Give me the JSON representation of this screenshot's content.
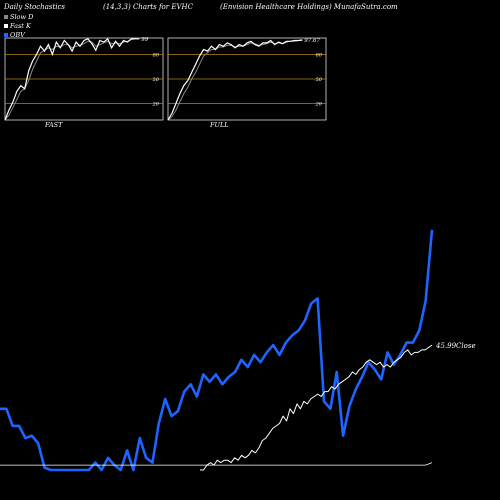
{
  "header": {
    "left": "Daily Stochastics",
    "center": "(14,3,3) Charts for EVHC",
    "right": "(Envision  Healthcare  Holdings) MunafaSutra.com"
  },
  "legend": [
    {
      "label": "Slow  D",
      "color": "#888888"
    },
    {
      "label": "Fast K",
      "color": "#ffffff"
    },
    {
      "label": "OBV",
      "color": "#1e64ff"
    }
  ],
  "colors": {
    "background": "#000000",
    "obv": "#1e64ff",
    "close": "#ffffff",
    "levels": "#b8860b"
  },
  "chart_data": [
    {
      "type": "line",
      "label": "FAST",
      "ylim": [
        0,
        100
      ],
      "levels": [
        20,
        50,
        80
      ],
      "last_value_label": "99",
      "series": [
        {
          "name": "Fast K",
          "values": [
            0,
            12,
            22,
            35,
            42,
            38,
            60,
            72,
            80,
            90,
            84,
            92,
            80,
            95,
            88,
            97,
            92,
            84,
            95,
            90,
            97,
            99,
            93,
            85,
            97,
            95,
            99,
            88,
            96,
            90,
            97,
            95,
            99,
            99,
            99
          ]
        },
        {
          "name": "Slow  D",
          "values": [
            0,
            6,
            15,
            25,
            35,
            38,
            48,
            62,
            72,
            82,
            85,
            88,
            86,
            90,
            89,
            92,
            92,
            88,
            90,
            91,
            93,
            96,
            95,
            90,
            92,
            94,
            96,
            93,
            94,
            93,
            95,
            96,
            98,
            99,
            99
          ]
        }
      ]
    },
    {
      "type": "line",
      "label": "FULL",
      "ylim": [
        0,
        100
      ],
      "levels": [
        20,
        50,
        80
      ],
      "last_value_label": "97.67",
      "series": [
        {
          "name": "Fast K",
          "values": [
            0,
            8,
            20,
            32,
            42,
            48,
            58,
            68,
            78,
            86,
            84,
            90,
            86,
            92,
            90,
            94,
            92,
            88,
            92,
            90,
            94,
            96,
            92,
            90,
            94,
            94,
            97,
            92,
            95,
            93,
            96,
            96,
            97,
            97,
            97.67
          ]
        },
        {
          "name": "Slow  D",
          "values": [
            0,
            4,
            12,
            22,
            32,
            40,
            50,
            58,
            68,
            78,
            82,
            86,
            86,
            89,
            89,
            91,
            91,
            89,
            90,
            90,
            92,
            94,
            93,
            91,
            92,
            93,
            95,
            93,
            94,
            93,
            95,
            96,
            96,
            97,
            97
          ]
        }
      ]
    },
    {
      "type": "line",
      "ylim": [
        0,
        100
      ],
      "close_label": "45.99Close",
      "series": [
        {
          "name": "OBV",
          "values": [
            25,
            25,
            18,
            18,
            13,
            14,
            11,
            1,
            0,
            0,
            0,
            0,
            0,
            0,
            0,
            3,
            0,
            5,
            2,
            0,
            8,
            0,
            13,
            5,
            3,
            19,
            29,
            22,
            24,
            32,
            35,
            30,
            39,
            36,
            39,
            35,
            38,
            40,
            45,
            42,
            47,
            44,
            48,
            51,
            47,
            52,
            55,
            57,
            61,
            68,
            70,
            28,
            25,
            40,
            14,
            26,
            33,
            38,
            44,
            41,
            37,
            48,
            43,
            47,
            52,
            52,
            57,
            69,
            98
          ]
        },
        {
          "name": "Close",
          "values": [
            0,
            0,
            2,
            3,
            2,
            4,
            3,
            4,
            4,
            3,
            5,
            4,
            6,
            5,
            6,
            8,
            7,
            9,
            12,
            13,
            15,
            17,
            18,
            19,
            22,
            20,
            25,
            23,
            27,
            25,
            28,
            27,
            29,
            30,
            31,
            30,
            32,
            32,
            34,
            33,
            35,
            36,
            37,
            38,
            40,
            39,
            41,
            42,
            44,
            45,
            44,
            43,
            44,
            42,
            43,
            42,
            44,
            45,
            46,
            48,
            49,
            47,
            48,
            48,
            49,
            49,
            50,
            51
          ]
        },
        {
          "name": "Fast K",
          "values": [
            2,
            2,
            2,
            2,
            2,
            2,
            2,
            2,
            2,
            2,
            2,
            2,
            2,
            2,
            2,
            2,
            2,
            2,
            2,
            2,
            2,
            2,
            2,
            2,
            2,
            2,
            2,
            2,
            2,
            2,
            2,
            2,
            2,
            2,
            2,
            2,
            2,
            2,
            2,
            2,
            2,
            2,
            2,
            2,
            2,
            2,
            2,
            2,
            2,
            2,
            2,
            2,
            2,
            2,
            2,
            2,
            2,
            2,
            2,
            2,
            2,
            2,
            2,
            2,
            2,
            2,
            2,
            2,
            3
          ]
        }
      ]
    }
  ]
}
